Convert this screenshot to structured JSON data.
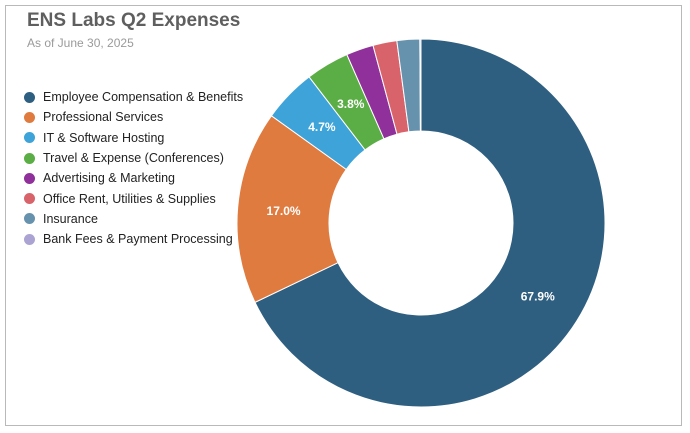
{
  "chart_data": {
    "type": "pie",
    "title": "ENS Labs Q2 Expenses",
    "subtitle": "As of June 30, 2025",
    "legend_position": "left",
    "slices": [
      {
        "label": "Employee Compensation & Benefits",
        "value": 67.9,
        "color": "#2e5f80",
        "display": "67.9%"
      },
      {
        "label": "Professional Services",
        "value": 17.0,
        "color": "#e07b3f",
        "display": "17.0%"
      },
      {
        "label": "IT & Software Hosting",
        "value": 4.7,
        "color": "#3ea3d8",
        "display": "4.7%"
      },
      {
        "label": "Travel & Expense (Conferences)",
        "value": 3.8,
        "color": "#5bad45",
        "display": "3.8%"
      },
      {
        "label": "Advertising & Marketing",
        "value": 2.4,
        "color": "#90309a",
        "display": ""
      },
      {
        "label": "Office Rent, Utilities & Supplies",
        "value": 2.1,
        "color": "#d9636b",
        "display": ""
      },
      {
        "label": "Insurance",
        "value": 2.0,
        "color": "#6792ad",
        "display": ""
      },
      {
        "label": "Bank Fees & Payment Processing",
        "value": 0.1,
        "color": "#aba3d2",
        "display": ""
      }
    ]
  }
}
